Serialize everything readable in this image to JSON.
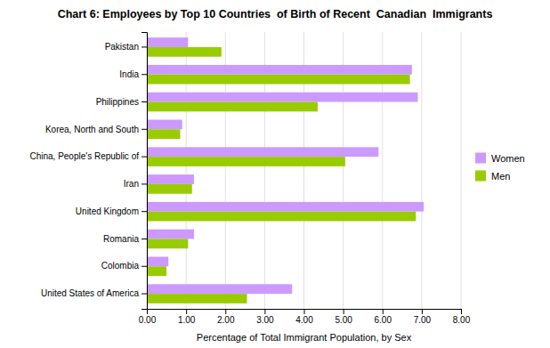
{
  "chart_data": {
    "type": "bar",
    "orientation": "horizontal",
    "title": "Chart 6: Employees by Top 10 Countries  of Birth of Recent  Canadian  Immigrants",
    "xlabel": "Percentage of Total Immigrant Population, by Sex",
    "categories": [
      "United States of America",
      "Colombia",
      "Romania",
      "United Kingdom",
      "Iran",
      "China, People's Republic of",
      "Korea, North and South",
      "Philippines",
      "India",
      "Pakistan"
    ],
    "series": [
      {
        "name": "Women",
        "color": "#CC99FF",
        "values": [
          3.7,
          0.55,
          1.2,
          7.05,
          1.2,
          5.9,
          0.9,
          6.9,
          6.75,
          1.05
        ]
      },
      {
        "name": "Men",
        "color": "#99CC00",
        "values": [
          2.55,
          0.5,
          1.05,
          6.85,
          1.15,
          5.05,
          0.85,
          4.35,
          6.7,
          1.9
        ]
      }
    ],
    "xlim": [
      0,
      8.0
    ],
    "xticks": [
      {
        "value": 0.0,
        "label": "0.00"
      },
      {
        "value": 1.0,
        "label": "1.00"
      },
      {
        "value": 2.0,
        "label": "2.00"
      },
      {
        "value": 3.0,
        "label": "3.00"
      },
      {
        "value": 4.0,
        "label": "4.00"
      },
      {
        "value": 5.0,
        "label": "5.00"
      },
      {
        "value": 6.0,
        "label": "6.00"
      },
      {
        "value": 7.0,
        "label": "7.00"
      },
      {
        "value": 8.0,
        "label": "8.00"
      }
    ],
    "grid": true,
    "legend": "right"
  }
}
